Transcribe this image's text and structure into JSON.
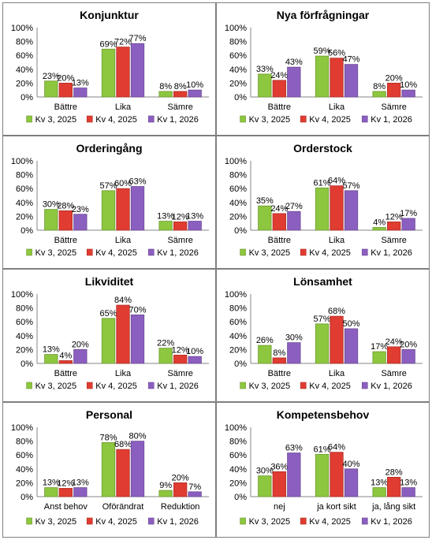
{
  "series_colors": [
    "#8dc63f",
    "#e03c31",
    "#8b5fbf"
  ],
  "chart_data": [
    {
      "type": "bar",
      "title": "Konjunktur",
      "categories": [
        "Bättre",
        "Lika",
        "Sämre"
      ],
      "series": [
        {
          "name": "Kv 3, 2025",
          "values": [
            23,
            69,
            8
          ]
        },
        {
          "name": "Kv 4, 2025",
          "values": [
            20,
            72,
            8
          ]
        },
        {
          "name": "Kv 1, 2026",
          "values": [
            13,
            77,
            10
          ]
        }
      ],
      "yticks": [
        "0%",
        "20%",
        "40%",
        "60%",
        "80%",
        "100%"
      ],
      "ylim": [
        0,
        100
      ],
      "grid": false,
      "legend": "bottom"
    },
    {
      "type": "bar",
      "title": "Nya förfrågningar",
      "categories": [
        "Bättre",
        "Lika",
        "Sämre"
      ],
      "series": [
        {
          "name": "Kv 3, 2025",
          "values": [
            33,
            59,
            8
          ]
        },
        {
          "name": "Kv 4, 2025",
          "values": [
            24,
            56,
            20
          ]
        },
        {
          "name": "Kv 1, 2026",
          "values": [
            43,
            47,
            10
          ]
        }
      ],
      "yticks": [
        "0%",
        "20%",
        "40%",
        "60%",
        "80%",
        "100%"
      ],
      "ylim": [
        0,
        100
      ],
      "grid": false,
      "legend": "bottom"
    },
    {
      "type": "bar",
      "title": "Orderingång",
      "categories": [
        "Bättre",
        "Lika",
        "Sämre"
      ],
      "series": [
        {
          "name": "Kv 3, 2025",
          "values": [
            30,
            57,
            13
          ]
        },
        {
          "name": "Kv 4, 2025",
          "values": [
            28,
            60,
            12
          ]
        },
        {
          "name": "Kv 1, 2026",
          "values": [
            23,
            63,
            13
          ]
        }
      ],
      "yticks": [
        "0%",
        "20%",
        "40%",
        "60%",
        "80%",
        "100%"
      ],
      "ylim": [
        0,
        100
      ],
      "grid": false,
      "legend": "bottom"
    },
    {
      "type": "bar",
      "title": "Orderstock",
      "categories": [
        "Bättre",
        "Lika",
        "Sämre"
      ],
      "series": [
        {
          "name": "Kv 3, 2025",
          "values": [
            35,
            61,
            4
          ]
        },
        {
          "name": "Kv 4, 2025",
          "values": [
            24,
            64,
            12
          ]
        },
        {
          "name": "Kv 1, 2026",
          "values": [
            27,
            57,
            17
          ]
        }
      ],
      "yticks": [
        "0%",
        "20%",
        "40%",
        "60%",
        "80%",
        "100%"
      ],
      "ylim": [
        0,
        100
      ],
      "grid": false,
      "legend": "bottom"
    },
    {
      "type": "bar",
      "title": "Likviditet",
      "categories": [
        "Bättre",
        "Lika",
        "Sämre"
      ],
      "series": [
        {
          "name": "Kv 3, 2025",
          "values": [
            13,
            65,
            22
          ]
        },
        {
          "name": "Kv 4, 2025",
          "values": [
            4,
            84,
            12
          ]
        },
        {
          "name": "Kv 1, 2026",
          "values": [
            20,
            70,
            10
          ]
        }
      ],
      "yticks": [
        "0%",
        "20%",
        "40%",
        "60%",
        "80%",
        "100%"
      ],
      "ylim": [
        0,
        100
      ],
      "grid": false,
      "legend": "bottom"
    },
    {
      "type": "bar",
      "title": "Lönsamhet",
      "categories": [
        "Bättre",
        "Lika",
        "Sämre"
      ],
      "series": [
        {
          "name": "Kv 3, 2025",
          "values": [
            26,
            57,
            17
          ]
        },
        {
          "name": "Kv 4, 2025",
          "values": [
            8,
            68,
            24
          ]
        },
        {
          "name": "Kv 1, 2026",
          "values": [
            30,
            50,
            20
          ]
        }
      ],
      "yticks": [
        "0%",
        "20%",
        "40%",
        "60%",
        "80%",
        "100%"
      ],
      "ylim": [
        0,
        100
      ],
      "grid": false,
      "legend": "bottom"
    },
    {
      "type": "bar",
      "title": "Personal",
      "categories": [
        "Anst behov",
        "Oförändrat",
        "Reduktion"
      ],
      "series": [
        {
          "name": "Kv 3, 2025",
          "values": [
            13,
            78,
            9
          ]
        },
        {
          "name": "Kv 4, 2025",
          "values": [
            12,
            68,
            20
          ]
        },
        {
          "name": "Kv 1, 2026",
          "values": [
            13,
            80,
            7
          ]
        }
      ],
      "yticks": [
        "0%",
        "20%",
        "40%",
        "60%",
        "80%",
        "100%"
      ],
      "ylim": [
        0,
        100
      ],
      "grid": false,
      "legend": "bottom"
    },
    {
      "type": "bar",
      "title": "Kompetensbehov",
      "categories": [
        "nej",
        "ja kort sikt",
        "ja, lång sikt"
      ],
      "series": [
        {
          "name": "Kv 3, 2025",
          "values": [
            30,
            61,
            13
          ]
        },
        {
          "name": "Kv 4, 2025",
          "values": [
            36,
            64,
            28
          ]
        },
        {
          "name": "Kv 1, 2026",
          "values": [
            63,
            40,
            13
          ]
        }
      ],
      "yticks": [
        "0%",
        "20%",
        "40%",
        "60%",
        "80%",
        "100%"
      ],
      "ylim": [
        0,
        100
      ],
      "grid": false,
      "legend": "bottom"
    }
  ]
}
